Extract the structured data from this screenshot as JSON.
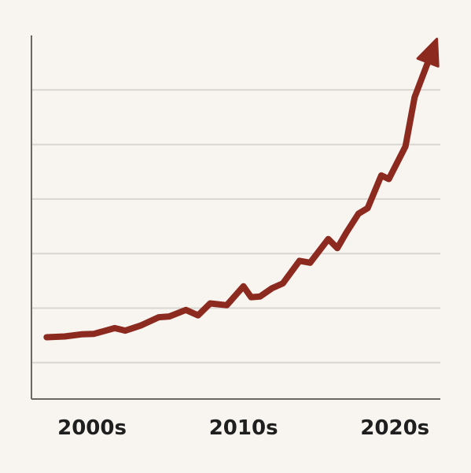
{
  "chart_data": {
    "type": "line",
    "title": "",
    "xlabel": "",
    "ylabel": "",
    "grid": true,
    "legend": "none",
    "x_tick_labels": [
      {
        "label": "2000s",
        "x": 2003
      },
      {
        "label": "2010s",
        "x": 2013
      },
      {
        "label": "2020s",
        "x": 2023
      }
    ],
    "xlim": [
      1999,
      2026
    ],
    "ylim": [
      0,
      100
    ],
    "y_gridlines": [
      10,
      25,
      40,
      55,
      70,
      85
    ],
    "end_marker": "arrow",
    "series": [
      {
        "x": [
          2000,
          2001.2,
          2002.3,
          2003.1,
          2004.5,
          2005.2,
          2006.2,
          2007.4,
          2008.1,
          2009.2,
          2010,
          2010.8,
          2011.9,
          2013,
          2013.5,
          2014.1,
          2014.9,
          2015.6,
          2016.7,
          2017.4,
          2018.6,
          2019.2,
          2019.8,
          2020.6,
          2021.2,
          2022.1,
          2022.6,
          2023.7,
          2024.3,
          2025.4
        ],
        "values": [
          17,
          17.2,
          17.8,
          17.9,
          19.5,
          18.8,
          20.2,
          22.5,
          22.7,
          24.5,
          23,
          26.3,
          25.8,
          31,
          28,
          28.2,
          30.5,
          31.8,
          38,
          37.5,
          44,
          41.5,
          45.8,
          51,
          52.5,
          61.5,
          60.5,
          69.5,
          83,
          95
        ]
      }
    ],
    "colors": {
      "line": "#8c2a20",
      "grid": "#d9d6d1",
      "axis": "#6b6864",
      "text": "#1f1f1f"
    }
  }
}
